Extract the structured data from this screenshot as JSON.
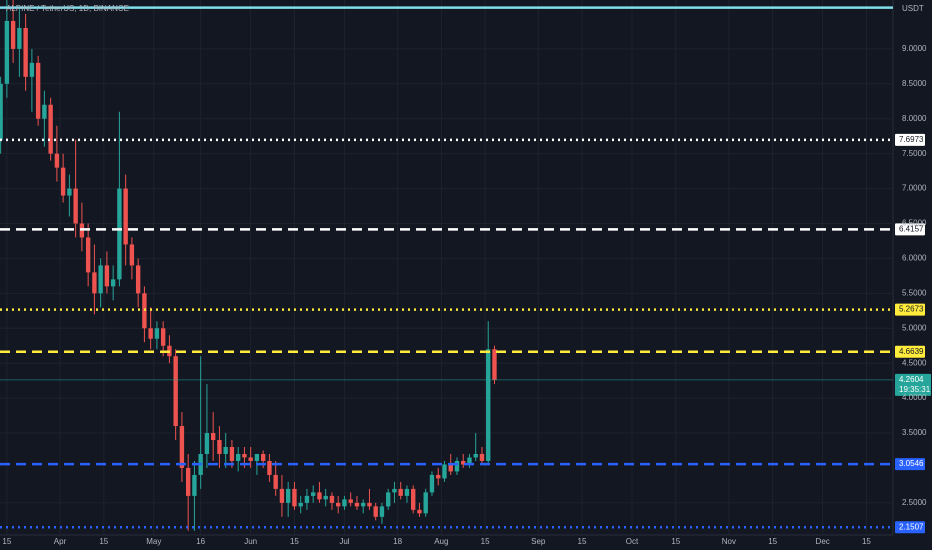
{
  "chart_data": {
    "type": "candlestick",
    "title": "ALPINE / TetherUS, 1D, BINANCE",
    "currency": "USDT",
    "up_color": "#26a69a",
    "down_color": "#ef5350",
    "grid": true,
    "ylim": [
      2.04,
      9.7
    ],
    "yticks": [
      {
        "value": 2.5,
        "label": "2.5000"
      },
      {
        "value": 3.5,
        "label": "3.5000"
      },
      {
        "value": 4,
        "label": "4.0000"
      },
      {
        "value": 4.5,
        "label": "4.5000"
      },
      {
        "value": 5,
        "label": "5.0000"
      },
      {
        "value": 5.5,
        "label": "5.5000"
      },
      {
        "value": 6,
        "label": "6.0000"
      },
      {
        "value": 6.5,
        "label": "6.5000"
      },
      {
        "value": 7,
        "label": "7.0000"
      },
      {
        "value": 7.5,
        "label": "7.5000"
      },
      {
        "value": 8,
        "label": "8.0000"
      },
      {
        "value": 8.5,
        "label": "8.5000"
      },
      {
        "value": 9,
        "label": "9.0000"
      }
    ],
    "xlim": [
      71.8,
      357.5
    ],
    "xticks": [
      {
        "value": 74,
        "label": "15"
      },
      {
        "value": 91,
        "label": "Apr"
      },
      {
        "value": 105,
        "label": "15"
      },
      {
        "value": 121,
        "label": "May"
      },
      {
        "value": 136,
        "label": "16"
      },
      {
        "value": 152,
        "label": "Jun"
      },
      {
        "value": 166,
        "label": "15"
      },
      {
        "value": 182,
        "label": "Jul"
      },
      {
        "value": 199,
        "label": "18"
      },
      {
        "value": 213,
        "label": "Aug"
      },
      {
        "value": 227,
        "label": "15"
      },
      {
        "value": 244,
        "label": "Sep"
      },
      {
        "value": 258,
        "label": "15"
      },
      {
        "value": 274,
        "label": "Oct"
      },
      {
        "value": 288,
        "label": "15"
      },
      {
        "value": 305,
        "label": "Nov"
      },
      {
        "value": 319,
        "label": "15"
      },
      {
        "value": 335,
        "label": "Dec"
      },
      {
        "value": 349,
        "label": "15"
      }
    ],
    "x": [
      72,
      74,
      76,
      78,
      80,
      82,
      84,
      86,
      88,
      90,
      92,
      94,
      96,
      98,
      100,
      102,
      104,
      106,
      108,
      110,
      112,
      114,
      116,
      118,
      120,
      122,
      124,
      126,
      128,
      130,
      132,
      134,
      136,
      138,
      140,
      142,
      144,
      146,
      148,
      150,
      152,
      154,
      156,
      158,
      160,
      162,
      164,
      166,
      168,
      170,
      172,
      174,
      176,
      178,
      180,
      182,
      184,
      186,
      188,
      190,
      192,
      194,
      196,
      198,
      200,
      202,
      204,
      206,
      208,
      210,
      212,
      214,
      216,
      218,
      220,
      222,
      224,
      226,
      228,
      230
    ],
    "ohlc": [
      [
        7.7,
        8.6,
        7.5,
        8.5
      ],
      [
        8.5,
        9.7,
        8.3,
        9.4
      ],
      [
        9.4,
        9.7,
        8.8,
        9.0
      ],
      [
        9.0,
        9.6,
        8.6,
        9.3
      ],
      [
        9.3,
        9.5,
        8.4,
        8.6
      ],
      [
        8.6,
        9.0,
        8.1,
        8.8
      ],
      [
        8.8,
        8.9,
        7.9,
        8.0
      ],
      [
        8.0,
        8.4,
        7.6,
        8.2
      ],
      [
        8.2,
        8.3,
        7.4,
        7.5
      ],
      [
        7.5,
        7.9,
        7.1,
        7.3
      ],
      [
        7.3,
        7.5,
        6.8,
        6.9
      ],
      [
        6.9,
        7.2,
        6.6,
        7.0
      ],
      [
        7.0,
        7.7,
        6.3,
        6.5
      ],
      [
        6.5,
        6.8,
        6.1,
        6.3
      ],
      [
        6.3,
        6.5,
        5.6,
        5.8
      ],
      [
        5.8,
        6.2,
        5.2,
        5.5
      ],
      [
        5.5,
        6.0,
        5.3,
        5.9
      ],
      [
        5.9,
        6.1,
        5.5,
        5.6
      ],
      [
        5.6,
        5.9,
        5.4,
        5.7
      ],
      [
        5.7,
        8.1,
        5.6,
        7.0
      ],
      [
        7.0,
        7.2,
        5.9,
        6.2
      ],
      [
        6.2,
        6.3,
        5.7,
        5.9
      ],
      [
        5.9,
        6.0,
        5.3,
        5.5
      ],
      [
        5.5,
        5.6,
        4.8,
        5.0
      ],
      [
        5.0,
        5.3,
        4.7,
        4.85
      ],
      [
        4.85,
        5.1,
        4.7,
        5.0
      ],
      [
        5.0,
        5.1,
        4.6,
        4.75
      ],
      [
        4.75,
        4.9,
        4.5,
        4.6
      ],
      [
        4.6,
        4.7,
        3.4,
        3.6
      ],
      [
        3.6,
        3.8,
        2.8,
        3.0
      ],
      [
        3.0,
        3.2,
        2.1,
        2.6
      ],
      [
        2.6,
        3.1,
        2.1,
        2.9
      ],
      [
        2.9,
        4.6,
        2.7,
        3.2
      ],
      [
        3.2,
        4.2,
        3.0,
        3.5
      ],
      [
        3.5,
        3.8,
        3.1,
        3.4
      ],
      [
        3.4,
        3.6,
        3.0,
        3.2
      ],
      [
        3.2,
        3.5,
        3.0,
        3.3
      ],
      [
        3.3,
        3.4,
        3.0,
        3.1
      ],
      [
        3.1,
        3.3,
        2.95,
        3.2
      ],
      [
        3.2,
        3.3,
        3.0,
        3.15
      ],
      [
        3.15,
        3.3,
        3.0,
        3.1
      ],
      [
        3.1,
        3.2,
        2.9,
        3.2
      ],
      [
        3.2,
        3.25,
        3.0,
        3.1
      ],
      [
        3.1,
        3.2,
        2.8,
        2.9
      ],
      [
        2.9,
        3.1,
        2.6,
        2.7
      ],
      [
        2.7,
        2.9,
        2.3,
        2.5
      ],
      [
        2.5,
        2.8,
        2.3,
        2.7
      ],
      [
        2.7,
        2.8,
        2.4,
        2.45
      ],
      [
        2.45,
        2.6,
        2.35,
        2.5
      ],
      [
        2.5,
        2.7,
        2.4,
        2.6
      ],
      [
        2.6,
        2.75,
        2.5,
        2.65
      ],
      [
        2.65,
        2.8,
        2.5,
        2.55
      ],
      [
        2.55,
        2.7,
        2.45,
        2.6
      ],
      [
        2.6,
        2.65,
        2.4,
        2.5
      ],
      [
        2.5,
        2.6,
        2.35,
        2.45
      ],
      [
        2.45,
        2.6,
        2.4,
        2.55
      ],
      [
        2.55,
        2.65,
        2.45,
        2.5
      ],
      [
        2.5,
        2.6,
        2.4,
        2.45
      ],
      [
        2.45,
        2.55,
        2.35,
        2.5
      ],
      [
        2.5,
        2.7,
        2.4,
        2.45
      ],
      [
        2.45,
        2.5,
        2.25,
        2.3
      ],
      [
        2.3,
        2.5,
        2.2,
        2.45
      ],
      [
        2.45,
        2.7,
        2.4,
        2.65
      ],
      [
        2.65,
        2.8,
        2.5,
        2.7
      ],
      [
        2.7,
        2.8,
        2.55,
        2.6
      ],
      [
        2.6,
        2.75,
        2.5,
        2.7
      ],
      [
        2.7,
        2.75,
        2.35,
        2.4
      ],
      [
        2.4,
        2.5,
        2.3,
        2.35
      ],
      [
        2.35,
        2.7,
        2.3,
        2.65
      ],
      [
        2.65,
        2.95,
        2.6,
        2.9
      ],
      [
        2.9,
        3.0,
        2.75,
        2.85
      ],
      [
        2.85,
        3.1,
        2.8,
        3.05
      ],
      [
        3.05,
        3.2,
        2.9,
        2.95
      ],
      [
        2.95,
        3.15,
        2.9,
        3.1
      ],
      [
        3.1,
        3.2,
        3.0,
        3.05
      ],
      [
        3.05,
        3.2,
        3.0,
        3.15
      ],
      [
        3.15,
        3.5,
        3.1,
        3.2
      ],
      [
        3.2,
        3.3,
        3.05,
        3.1
      ],
      [
        3.1,
        5.1,
        3.05,
        4.7
      ],
      [
        4.7,
        4.75,
        4.2,
        4.2604
      ]
    ],
    "levels": [
      {
        "value": 9.59,
        "color": "#80deea",
        "style": "solid"
      },
      {
        "value": 7.6973,
        "color": "#ffffff",
        "style": "dotted"
      },
      {
        "value": 6.4157,
        "color": "#ffffff",
        "style": "dashed"
      },
      {
        "value": 5.2673,
        "color": "#ffeb3b",
        "style": "dotted"
      },
      {
        "value": 4.6639,
        "color": "#ffeb3b",
        "style": "dashed"
      },
      {
        "value": 3.0546,
        "color": "#2962ff",
        "style": "dashed"
      },
      {
        "value": 2.1507,
        "color": "#2962ff",
        "style": "dotted"
      }
    ],
    "last_price": 4.2604,
    "countdown": "19:35:31"
  }
}
